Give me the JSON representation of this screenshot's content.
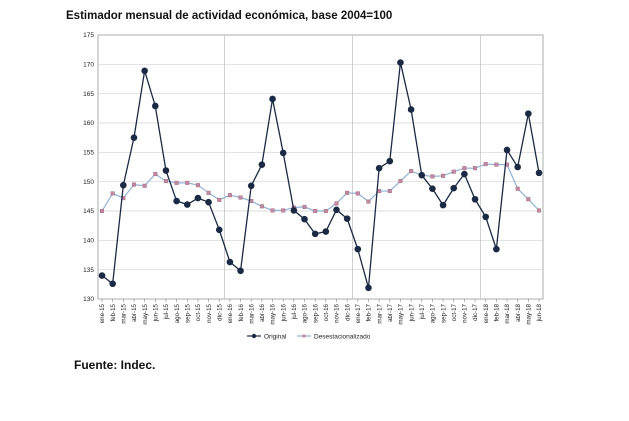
{
  "title": "Estimador mensual de actividad económica, base 2004=100",
  "source": "Fuente: Indec.",
  "chart_data": {
    "type": "line",
    "title": "Estimador mensual de actividad económica, base 2004=100",
    "xlabel": "",
    "ylabel": "",
    "ylim": [
      130,
      175
    ],
    "yticks": [
      130,
      135,
      140,
      145,
      150,
      155,
      160,
      165,
      170,
      175
    ],
    "grid": "horizontal and yearly vertical",
    "legend_position": "bottom-center",
    "x": [
      "ene-15",
      "feb-15",
      "mar-15",
      "abr-15",
      "may-15",
      "jun-15",
      "jul-15",
      "ago-15",
      "sep-15",
      "oct-15",
      "nov-15",
      "dic-15",
      "ene-16",
      "feb-16",
      "mar-16",
      "abr-16",
      "may-16",
      "jun-16",
      "jul-16",
      "ago-16",
      "sep-16",
      "oct-16",
      "nov-16",
      "dic-16",
      "ene-17",
      "feb-17",
      "mar-17",
      "abr-17",
      "may-17",
      "jun-17",
      "jul-17",
      "ago-17",
      "sep-17",
      "oct-17",
      "nov-17",
      "dic-17",
      "ene-18",
      "feb-18",
      "mar-18",
      "abr-18",
      "may-18",
      "jun-18"
    ],
    "series": [
      {
        "name": "Original",
        "color": "#1b2a44",
        "marker": "circle",
        "values": [
          134.0,
          132.6,
          149.4,
          157.5,
          168.9,
          162.9,
          151.9,
          146.7,
          146.1,
          147.2,
          146.5,
          141.8,
          136.3,
          134.8,
          149.3,
          152.9,
          164.1,
          154.9,
          145.1,
          143.6,
          141.1,
          141.5,
          145.2,
          143.7,
          138.5,
          131.9,
          152.3,
          153.5,
          170.3,
          162.3,
          151.1,
          148.8,
          146.0,
          148.9,
          151.3,
          147.0,
          144.0,
          138.5,
          155.4,
          152.5,
          161.6,
          151.5
        ]
      },
      {
        "name": "Desestacionalizado",
        "color": "#c08aa0",
        "marker": "square",
        "values": [
          145.0,
          148.0,
          147.2,
          149.5,
          149.3,
          151.3,
          150.1,
          149.8,
          149.8,
          149.4,
          148.1,
          146.9,
          147.7,
          147.3,
          146.7,
          145.8,
          145.1,
          145.1,
          145.6,
          145.7,
          145.0,
          145.0,
          146.3,
          148.1,
          148.0,
          146.6,
          148.4,
          148.4,
          150.1,
          151.8,
          151.1,
          150.9,
          151.0,
          151.7,
          152.3,
          152.3,
          153.0,
          152.9,
          152.9,
          148.8,
          147.0,
          145.1
        ]
      }
    ]
  }
}
